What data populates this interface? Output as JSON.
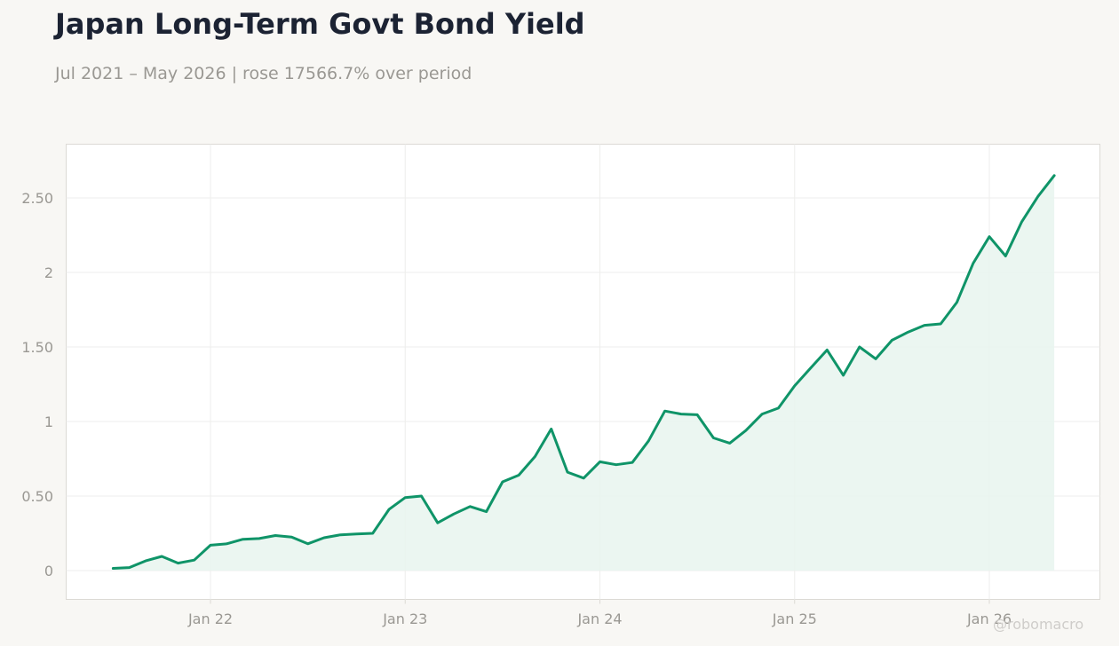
{
  "header": {
    "title": "Japan Long-Term Govt Bond Yield",
    "subtitle": "Jul 2021 – May 2026 | rose 17566.7% over period"
  },
  "watermark": "@robomacro",
  "colors": {
    "line": "#0f9468",
    "area": "#e8f4ef",
    "grid": "#eeeeec",
    "axis_text": "#9a9893",
    "plot_border": "#dcdad5",
    "plot_bg": "#ffffff"
  },
  "chart_data": {
    "type": "area",
    "title": "Japan Long-Term Govt Bond Yield",
    "xlabel": "",
    "ylabel": "",
    "ylim": [
      -0.2,
      2.8
    ],
    "yticks": [
      0,
      0.5,
      1,
      1.5,
      2,
      2.5
    ],
    "ytick_labels": [
      "0",
      "0.50",
      "1",
      "1.50",
      "2",
      "2.50"
    ],
    "xticks": [
      "2022-01",
      "2023-01",
      "2024-01",
      "2025-01",
      "2026-01"
    ],
    "xtick_labels": [
      "Jan 22",
      "Jan 23",
      "Jan 24",
      "Jan 25",
      "Jan 26"
    ],
    "grid": true,
    "series": [
      {
        "dates": [
          "2021-07",
          "2021-08",
          "2021-09",
          "2021-10",
          "2021-11",
          "2021-12",
          "2022-01",
          "2022-02",
          "2022-03",
          "2022-04",
          "2022-05",
          "2022-06",
          "2022-07",
          "2022-08",
          "2022-09",
          "2022-10",
          "2022-11",
          "2022-12",
          "2023-01",
          "2023-02",
          "2023-03",
          "2023-04",
          "2023-05",
          "2023-06",
          "2023-07",
          "2023-08",
          "2023-09",
          "2023-10",
          "2023-11",
          "2023-12",
          "2024-01",
          "2024-02",
          "2024-03",
          "2024-04",
          "2024-05",
          "2024-06",
          "2024-07",
          "2024-08",
          "2024-09",
          "2024-10",
          "2024-11",
          "2024-12",
          "2025-01",
          "2025-02",
          "2025-03",
          "2025-04",
          "2025-05",
          "2025-06",
          "2025-07",
          "2025-08",
          "2025-09",
          "2025-10",
          "2025-11",
          "2025-12",
          "2026-01",
          "2026-02",
          "2026-03",
          "2026-04",
          "2026-05"
        ],
        "values": [
          0.015,
          0.02,
          0.065,
          0.095,
          0.05,
          0.07,
          0.17,
          0.18,
          0.21,
          0.215,
          0.235,
          0.225,
          0.18,
          0.22,
          0.24,
          0.245,
          0.25,
          0.41,
          0.49,
          0.5,
          0.32,
          0.38,
          0.43,
          0.395,
          0.595,
          0.64,
          0.765,
          0.95,
          0.66,
          0.62,
          0.73,
          0.71,
          0.725,
          0.87,
          1.07,
          1.05,
          1.045,
          0.89,
          0.855,
          0.94,
          1.05,
          1.09,
          1.24,
          1.36,
          1.48,
          1.31,
          1.5,
          1.42,
          1.545,
          1.6,
          1.645,
          1.655,
          1.8,
          2.06,
          2.24,
          2.11,
          2.34,
          2.51,
          2.65
        ]
      }
    ]
  }
}
